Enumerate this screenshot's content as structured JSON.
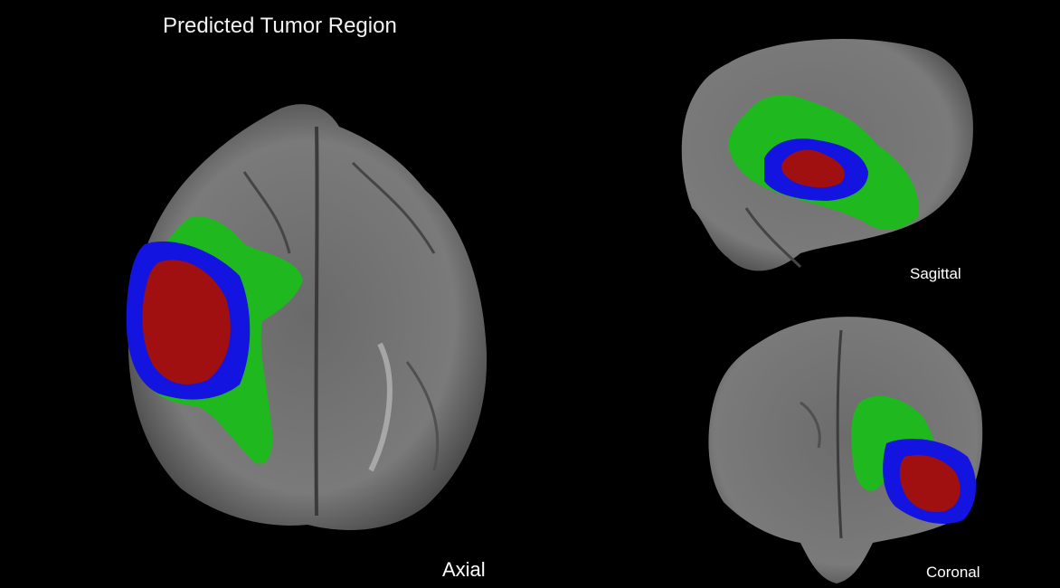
{
  "title": "Predicted Tumor Region",
  "views": {
    "axial": {
      "label": "Axial"
    },
    "sagittal": {
      "label": "Sagittal"
    },
    "coronal": {
      "label": "Coronal"
    }
  },
  "colors": {
    "background": "#000000",
    "brain_tissue": "#7a7a7a",
    "edema": "#1fb81f",
    "enhancing_tumor": "#1414e0",
    "necrotic_core": "#a01010"
  }
}
